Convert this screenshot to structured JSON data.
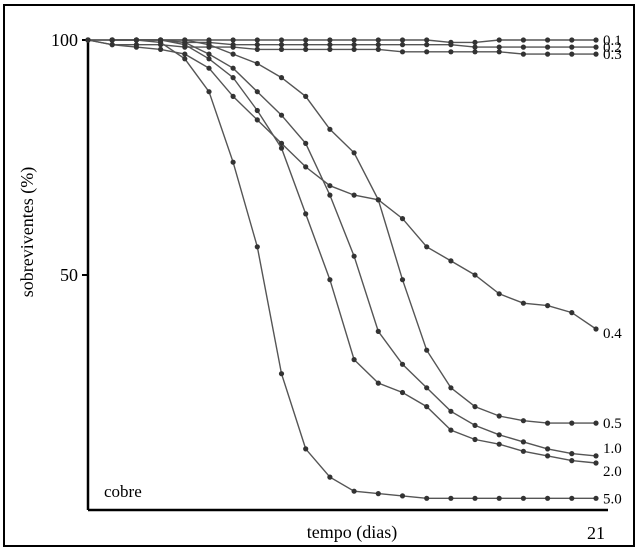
{
  "chart_data": {
    "type": "line",
    "title": "",
    "xlabel": "tempo (dias)",
    "ylabel": "sobreviventes (%)",
    "annotation": "cobre",
    "xlim": [
      0,
      21
    ],
    "ylim": [
      0,
      100
    ],
    "x_tick_labels": [
      {
        "value": 21,
        "label": "21"
      }
    ],
    "y_tick_labels": [
      {
        "value": 100,
        "label": "100"
      },
      {
        "value": 50,
        "label": "50"
      }
    ],
    "grid": false,
    "legend": "none",
    "series": [
      {
        "name": "0.1",
        "x": [
          0,
          1,
          2,
          3,
          4,
          5,
          6,
          7,
          8,
          9,
          10,
          11,
          12,
          13,
          14,
          15,
          16,
          17,
          18,
          19,
          20,
          21
        ],
        "y": [
          100,
          100,
          100,
          100,
          100,
          100,
          100,
          100,
          100,
          100,
          100,
          100,
          100,
          100,
          100,
          99.5,
          99.5,
          100,
          100,
          100,
          100,
          100
        ]
      },
      {
        "name": "0.2",
        "x": [
          0,
          1,
          2,
          3,
          4,
          5,
          6,
          7,
          8,
          9,
          10,
          11,
          12,
          13,
          14,
          15,
          16,
          17,
          18,
          19,
          20,
          21
        ],
        "y": [
          100,
          100,
          100,
          100,
          99.5,
          99.5,
          99,
          99,
          99,
          99,
          99,
          99,
          99,
          99,
          99,
          99,
          98.5,
          98.5,
          98.5,
          98.5,
          98.5,
          98.5
        ]
      },
      {
        "name": "0.3",
        "x": [
          0,
          1,
          2,
          3,
          4,
          5,
          6,
          7,
          8,
          9,
          10,
          11,
          12,
          13,
          14,
          15,
          16,
          17,
          18,
          19,
          20,
          21
        ],
        "y": [
          100,
          99,
          99,
          99,
          98.5,
          98.5,
          98.5,
          98,
          98,
          98,
          98,
          98,
          98,
          97.5,
          97.5,
          97.5,
          97.5,
          97.5,
          97,
          97,
          97,
          97
        ]
      },
      {
        "name": "0.4",
        "x": [
          0,
          1,
          2,
          3,
          4,
          5,
          6,
          7,
          8,
          9,
          10,
          11,
          12,
          13,
          14,
          15,
          16,
          17,
          18,
          19,
          20,
          21
        ],
        "y": [
          100,
          99,
          98.5,
          98,
          97,
          94,
          88,
          83,
          78,
          73,
          69,
          67,
          66,
          62,
          56,
          53,
          50,
          46,
          44,
          43.5,
          42,
          38.5
        ]
      },
      {
        "name": "0.5",
        "x": [
          1,
          2,
          3,
          4,
          5,
          6,
          7,
          8,
          9,
          10,
          11,
          12,
          13,
          14,
          15,
          16,
          17,
          18,
          19,
          20,
          21
        ],
        "y": [
          100,
          100,
          100,
          100,
          99,
          97,
          95,
          92,
          88,
          81,
          76,
          66,
          49,
          34,
          26,
          22,
          20,
          19,
          18.5,
          18.5,
          18.5
        ]
      },
      {
        "name": "1.0",
        "x": [
          1,
          2,
          3,
          4,
          5,
          6,
          7,
          8,
          9,
          10,
          11,
          12,
          13,
          14,
          15,
          16,
          17,
          18,
          19,
          20,
          21
        ],
        "y": [
          100,
          100,
          100,
          99.5,
          97,
          94,
          89,
          84,
          78,
          67,
          54,
          38,
          31,
          26,
          21,
          18,
          16,
          14.5,
          13,
          12,
          11.5
        ]
      },
      {
        "name": "2.0",
        "x": [
          1,
          2,
          3,
          4,
          5,
          6,
          7,
          8,
          9,
          10,
          11,
          12,
          13,
          14,
          15,
          16,
          17,
          18,
          19,
          20,
          21
        ],
        "y": [
          100,
          100,
          100,
          99,
          96,
          92,
          85,
          77,
          63,
          49,
          32,
          27,
          25,
          22,
          17,
          15,
          14,
          12.5,
          11.5,
          10.5,
          10
        ]
      },
      {
        "name": "5.0",
        "x": [
          1,
          2,
          3,
          4,
          5,
          6,
          7,
          8,
          9,
          10,
          11,
          12,
          13,
          14,
          15,
          16,
          17,
          18,
          19,
          20,
          21
        ],
        "y": [
          100,
          100,
          99.5,
          96,
          89,
          74,
          56,
          29,
          13,
          7,
          4,
          3.5,
          3,
          2.5,
          2.5,
          2.5,
          2.5,
          2.5,
          2.5,
          2.5,
          2.5
        ]
      }
    ]
  }
}
